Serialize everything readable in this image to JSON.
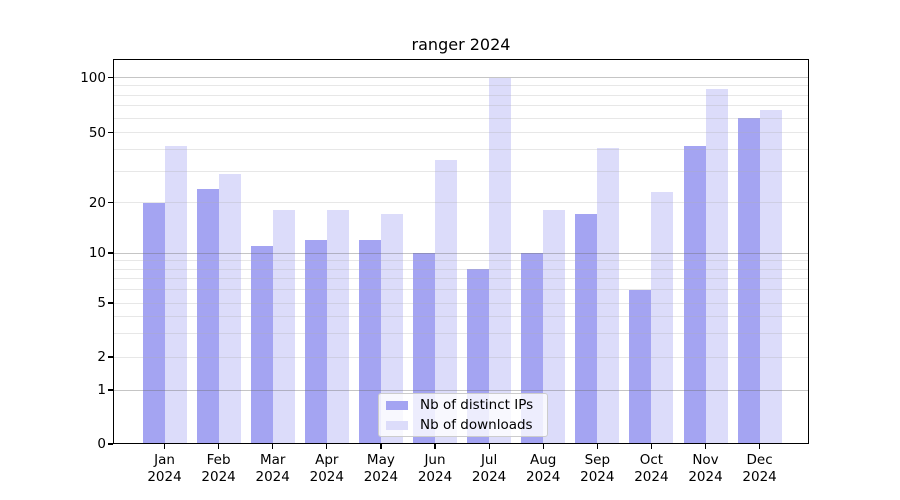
{
  "title": "ranger 2024",
  "legend": {
    "items": [
      {
        "label": "Nb of distinct IPs",
        "color": "#a4a4f2"
      },
      {
        "label": "Nb of downloads",
        "color": "#dcdcfa"
      }
    ]
  },
  "months": [
    {
      "month": "Jan",
      "year": "2024"
    },
    {
      "month": "Feb",
      "year": "2024"
    },
    {
      "month": "Mar",
      "year": "2024"
    },
    {
      "month": "Apr",
      "year": "2024"
    },
    {
      "month": "May",
      "year": "2024"
    },
    {
      "month": "Jun",
      "year": "2024"
    },
    {
      "month": "Jul",
      "year": "2024"
    },
    {
      "month": "Aug",
      "year": "2024"
    },
    {
      "month": "Sep",
      "year": "2024"
    },
    {
      "month": "Oct",
      "year": "2024"
    },
    {
      "month": "Nov",
      "year": "2024"
    },
    {
      "month": "Dec",
      "year": "2024"
    }
  ],
  "y_axis": {
    "tick_labels": [
      "0",
      "1",
      "2",
      "5",
      "10",
      "20",
      "50",
      "100"
    ],
    "tick_values": [
      0,
      1,
      2,
      5,
      10,
      20,
      50,
      100
    ],
    "minor_grid_values": [
      2,
      3,
      4,
      5,
      6,
      7,
      8,
      9,
      20,
      30,
      40,
      50,
      60,
      70,
      80,
      90
    ],
    "major_grid_values": [
      1,
      10,
      100
    ]
  },
  "chart_data": {
    "type": "bar",
    "title": "ranger 2024",
    "categories": [
      "Jan 2024",
      "Feb 2024",
      "Mar 2024",
      "Apr 2024",
      "May 2024",
      "Jun 2024",
      "Jul 2024",
      "Aug 2024",
      "Sep 2024",
      "Oct 2024",
      "Nov 2024",
      "Dec 2024"
    ],
    "series": [
      {
        "name": "Nb of distinct IPs",
        "color": "#a4a4f2",
        "values": [
          20,
          24,
          11,
          12,
          12,
          10,
          8,
          10,
          17,
          6,
          42,
          60
        ]
      },
      {
        "name": "Nb of downloads",
        "color": "#dcdcfa",
        "values": [
          42,
          29,
          18,
          18,
          17,
          35,
          100,
          18,
          41,
          23,
          87,
          66
        ]
      }
    ],
    "xlabel": "",
    "ylabel": "",
    "yscale": "symlog",
    "yticks": [
      0,
      1,
      2,
      5,
      10,
      20,
      50,
      100
    ],
    "ylim": [
      0,
      130
    ],
    "grid": "horizontal (minor + major)",
    "legend_position": "lower center"
  }
}
